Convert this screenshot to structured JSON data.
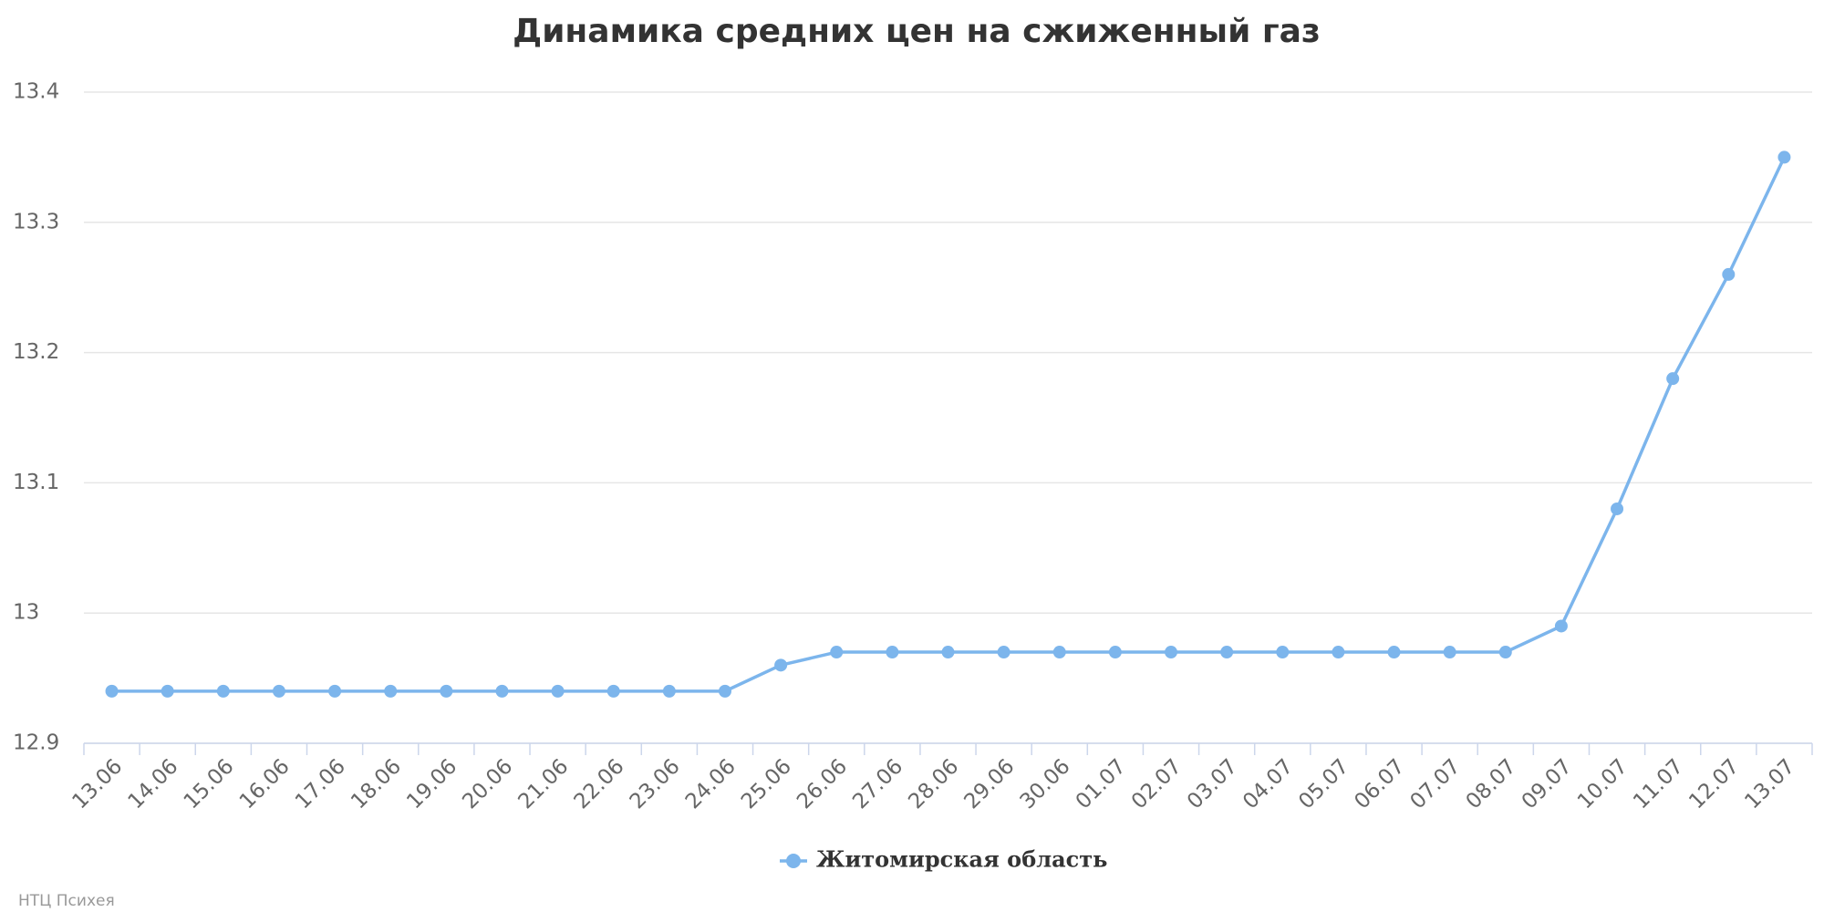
{
  "chart_data": {
    "type": "line",
    "title": "Динамика средних цен на сжиженный газ",
    "categories": [
      "13.06",
      "14.06",
      "15.06",
      "16.06",
      "17.06",
      "18.06",
      "19.06",
      "20.06",
      "21.06",
      "22.06",
      "23.06",
      "24.06",
      "25.06",
      "26.06",
      "27.06",
      "28.06",
      "29.06",
      "30.06",
      "01.07",
      "02.07",
      "03.07",
      "04.07",
      "05.07",
      "06.07",
      "07.07",
      "08.07",
      "09.07",
      "10.07",
      "11.07",
      "12.07",
      "13.07"
    ],
    "series": [
      {
        "name": "Житомирская область",
        "color": "#7cb5ec",
        "values": [
          12.94,
          12.94,
          12.94,
          12.94,
          12.94,
          12.94,
          12.94,
          12.94,
          12.94,
          12.94,
          12.94,
          12.94,
          12.96,
          12.97,
          12.97,
          12.97,
          12.97,
          12.97,
          12.97,
          12.97,
          12.97,
          12.97,
          12.97,
          12.97,
          12.97,
          12.97,
          12.99,
          13.08,
          13.18,
          13.26,
          13.35
        ]
      }
    ],
    "ylim": [
      12.9,
      13.4
    ],
    "yticks": [
      12.9,
      13,
      13.1,
      13.2,
      13.3,
      13.4
    ],
    "grid": true,
    "legend": "bottom",
    "credits": "НТЦ Психея"
  }
}
